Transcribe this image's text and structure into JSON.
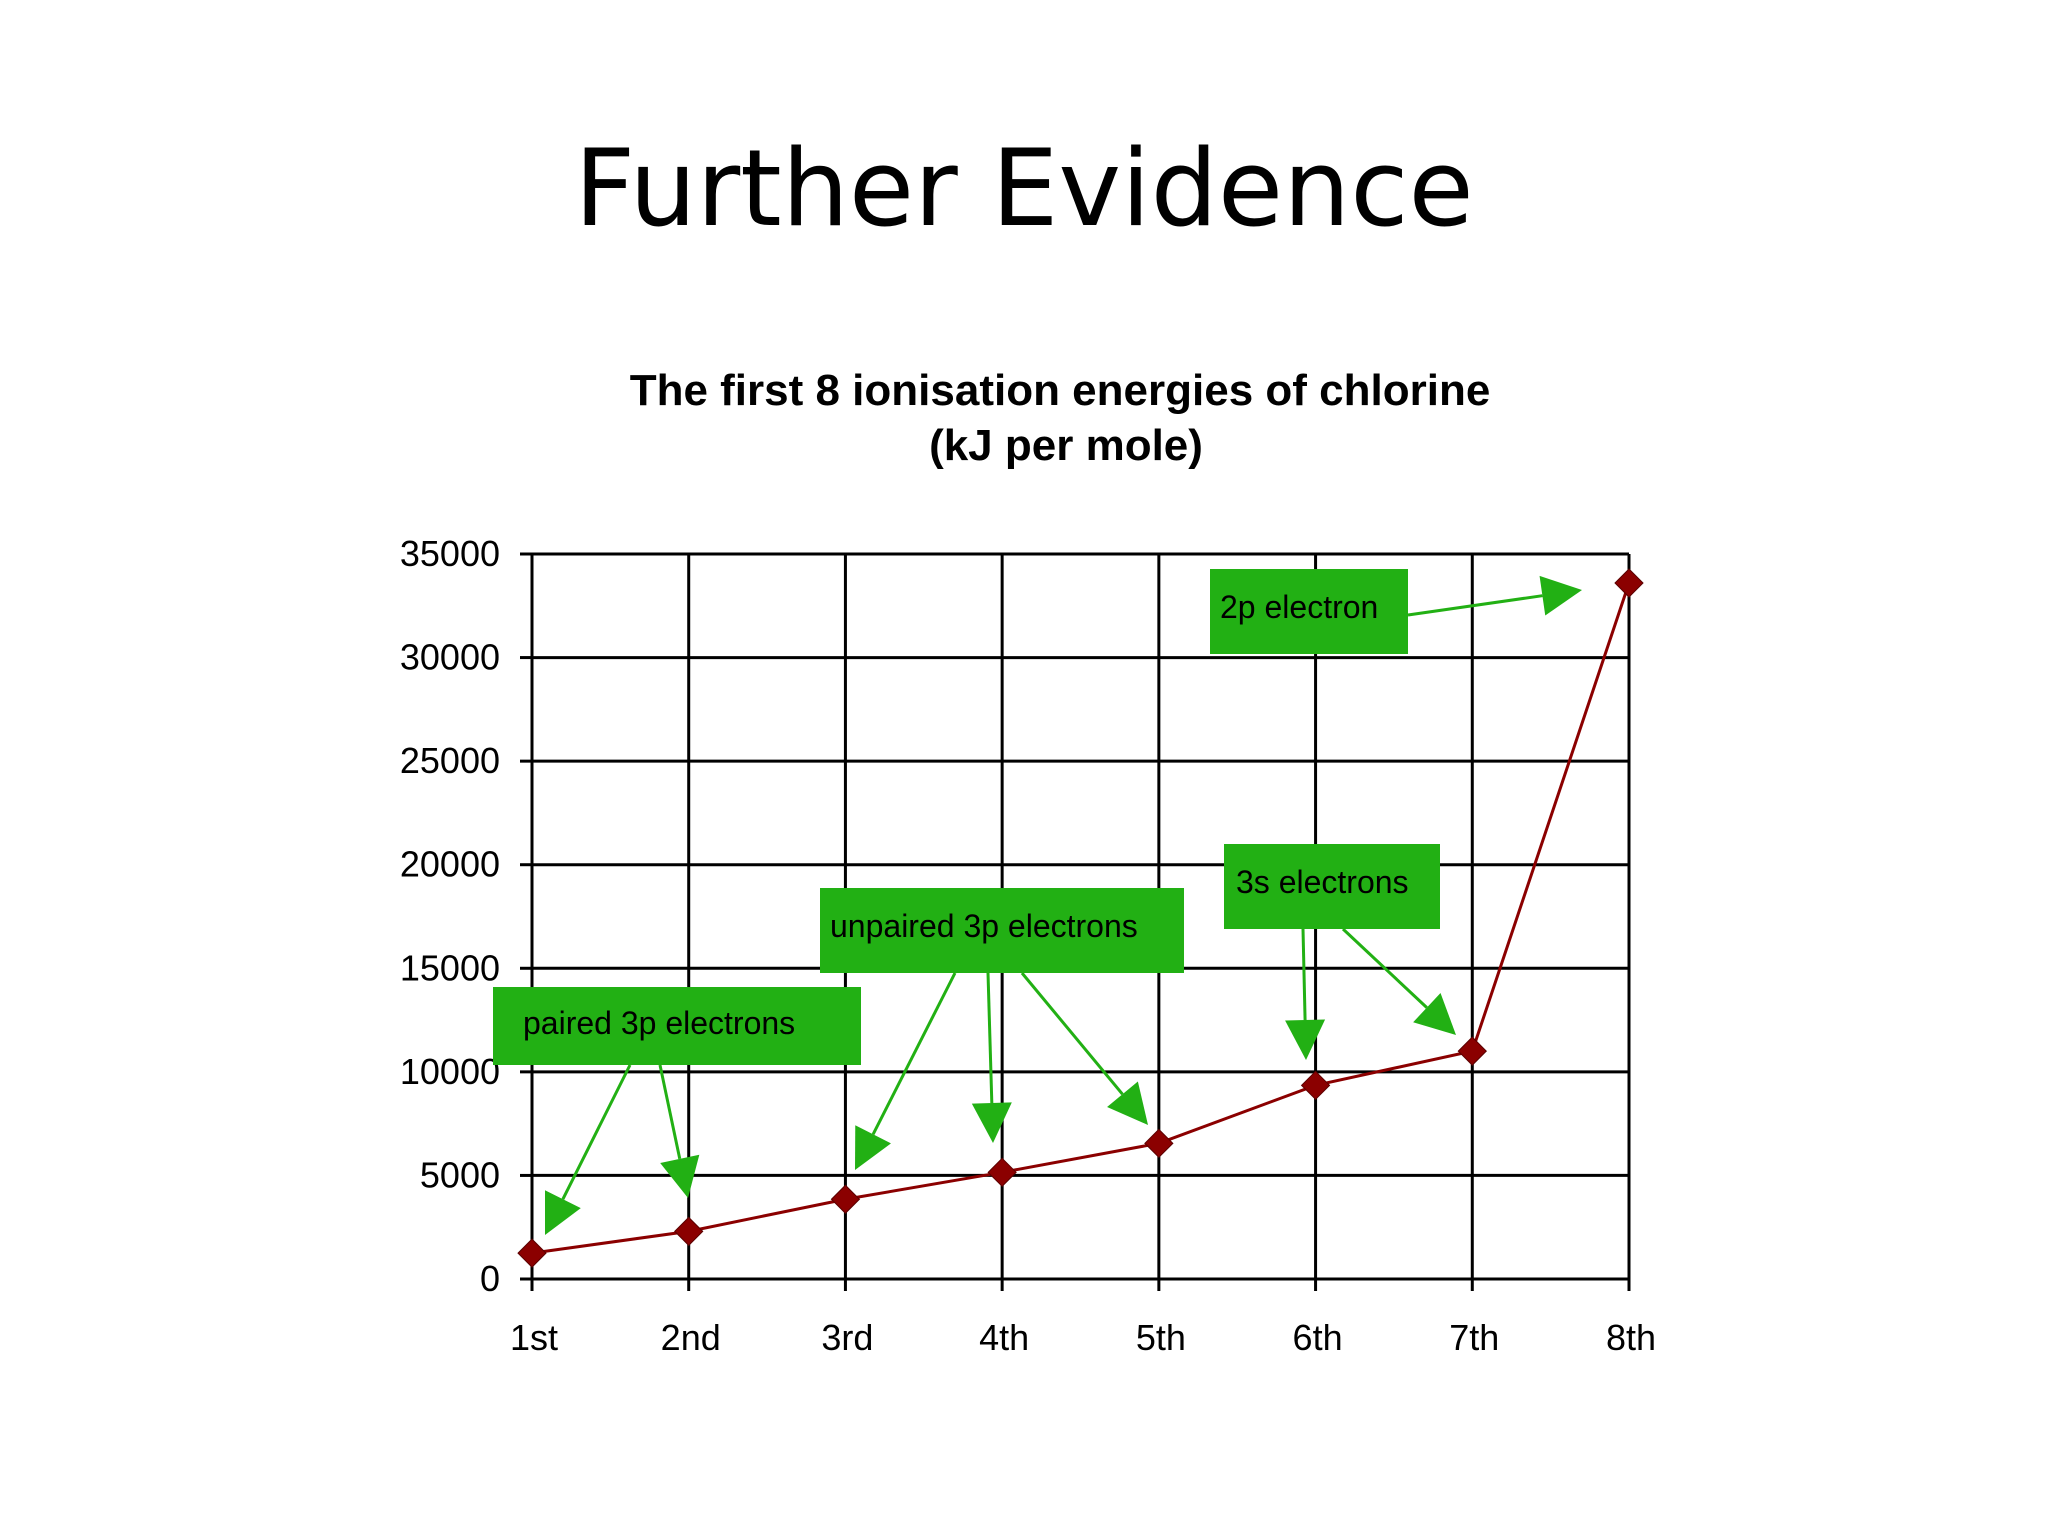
{
  "slide": {
    "title": "Further Evidence"
  },
  "chart_data": {
    "type": "line",
    "title": "The first 8 ionisation energies of chlorine",
    "subtitle": "(kJ per mole)",
    "categories": [
      "1st",
      "2nd",
      "3rd",
      "4th",
      "5th",
      "6th",
      "7th",
      "8th"
    ],
    "series": [
      {
        "values": [
          1250,
          2300,
          3850,
          5150,
          6550,
          9350,
          11000,
          33600
        ]
      }
    ],
    "ylim": [
      0,
      35000
    ],
    "yticks": [
      "0",
      "5000",
      "10000",
      "15000",
      "20000",
      "25000",
      "30000",
      "35000"
    ],
    "grid": true,
    "line_color": "#8b0000",
    "annotation_color": "#22b014",
    "annotations": [
      {
        "text": "paired 3p electrons",
        "targets": [
          0,
          1
        ]
      },
      {
        "text": "unpaired 3p electrons",
        "targets": [
          2,
          3,
          4
        ]
      },
      {
        "text": "3s electrons",
        "targets": [
          5,
          6
        ]
      },
      {
        "text": "2p electron",
        "targets": [
          7
        ]
      }
    ]
  }
}
